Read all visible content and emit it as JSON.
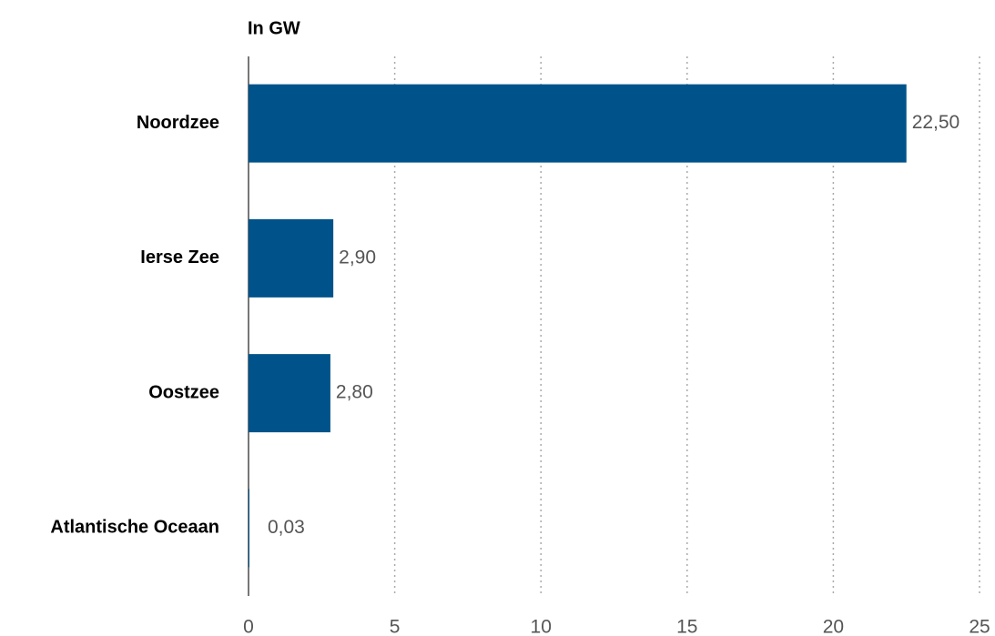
{
  "chart_data": {
    "type": "bar",
    "title": "In GW",
    "categories": [
      "Noordzee",
      "Ierse Zee",
      "Oostzee",
      "Atlantische Oceaan"
    ],
    "values": [
      22.5,
      2.9,
      2.8,
      0.03
    ],
    "value_labels": [
      "22,50",
      "2,90",
      "2,80",
      "0,03"
    ],
    "color": "#00538a",
    "xlim": [
      0,
      25
    ],
    "xticks": [
      0,
      5,
      10,
      15,
      20,
      25
    ],
    "grid": true
  }
}
